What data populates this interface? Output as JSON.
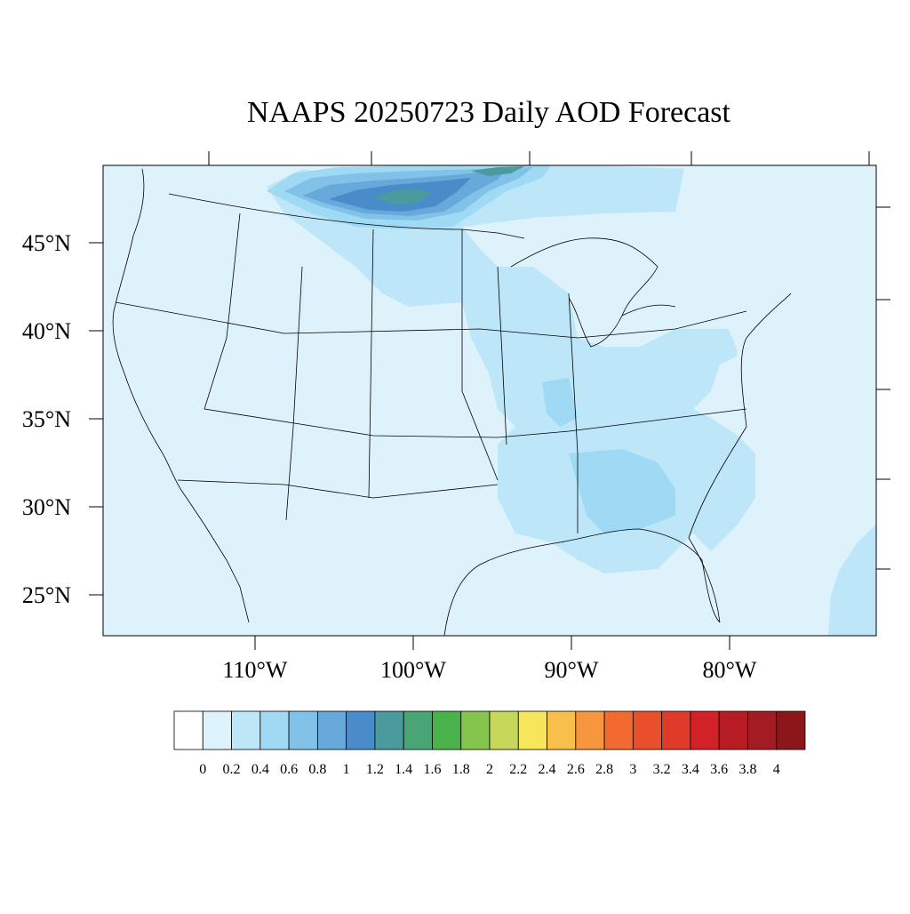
{
  "title": "NAAPS 20250723 Daily AOD Forecast",
  "map": {
    "lat_labels": [
      "45°N",
      "40°N",
      "35°N",
      "30°N",
      "25°N"
    ],
    "lon_labels": [
      "110°W",
      "100°W",
      "90°W",
      "80°W"
    ],
    "background_color": "#def2fb"
  },
  "colorbar": {
    "labels": [
      "0",
      "0.2",
      "0.4",
      "0.6",
      "0.8",
      "1",
      "1.2",
      "1.4",
      "1.6",
      "1.8",
      "2",
      "2.2",
      "2.4",
      "2.6",
      "2.8",
      "3",
      "3.2",
      "3.4",
      "3.6",
      "3.8",
      "4"
    ],
    "colors": [
      "#ffffff",
      "#def2fb",
      "#bde6f8",
      "#9fd9f4",
      "#83c2e8",
      "#68a9dc",
      "#4a8cca",
      "#4a9a9e",
      "#49a575",
      "#49b24a",
      "#86c54d",
      "#c6d85a",
      "#f7e65c",
      "#f8c04b",
      "#f7963e",
      "#f36a30",
      "#ea4f2c",
      "#df3a2a",
      "#d22128",
      "#b71c25",
      "#a31b23",
      "#8c171b"
    ]
  }
}
